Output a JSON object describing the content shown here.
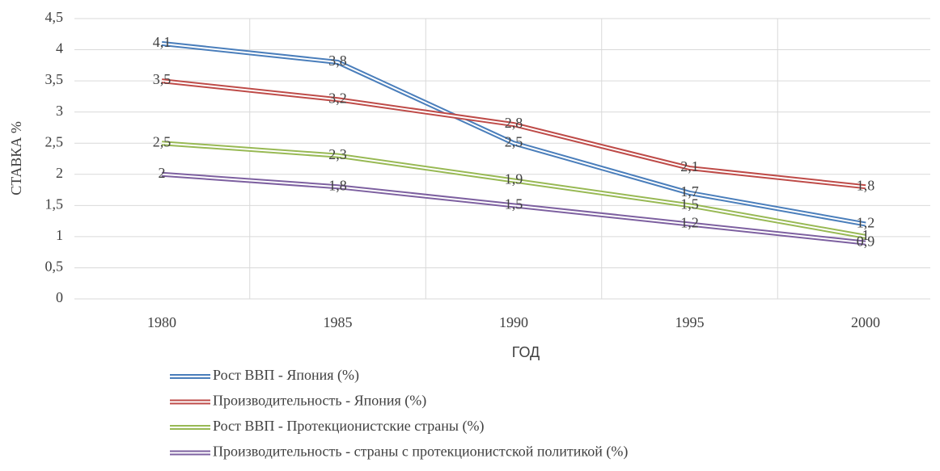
{
  "chart_data": {
    "type": "line",
    "y_axis_label": "СТАВКА %",
    "x_axis_label": "ГОД",
    "categories": [
      "1980",
      "1985",
      "1990",
      "1995",
      "2000"
    ],
    "series": [
      {
        "name": "Рост ВВП - Япония (%)",
        "color": "#4a7ebb",
        "values": [
          4.1,
          3.8,
          2.5,
          1.7,
          1.2
        ],
        "value_labels": [
          "4,1",
          "3,8",
          "2,5",
          "1,7",
          "1,2"
        ]
      },
      {
        "name": "Производительность - Япония (%)",
        "color": "#be4b48",
        "values": [
          3.5,
          3.2,
          2.8,
          2.1,
          1.8
        ],
        "value_labels": [
          "3,5",
          "3,2",
          "2,8",
          "2,1",
          "1,8"
        ]
      },
      {
        "name": "Рост ВВП - Протекционистские страны (%)",
        "color": "#98b954",
        "values": [
          2.5,
          2.3,
          1.9,
          1.5,
          1
        ],
        "value_labels": [
          "2,5",
          "2,3",
          "1,9",
          "1,5",
          "1"
        ]
      },
      {
        "name": "Производительность - страны с протекционистской политикой (%)",
        "color": "#7d60a0",
        "values": [
          2,
          1.8,
          1.5,
          1.2,
          0.9
        ],
        "value_labels": [
          "2",
          "1,8",
          "1,5",
          "1,2",
          "0,9"
        ]
      }
    ],
    "ylim": [
      0,
      4.5
    ],
    "yticks": [
      0,
      {
        "value": 0.5,
        "label": "0,5"
      },
      1,
      {
        "value": 1.5,
        "label": "1,5"
      },
      2,
      {
        "value": 2.5,
        "label": "2,5"
      },
      3,
      {
        "value": 3.5,
        "label": "3,5"
      },
      4,
      {
        "value": 4.5,
        "label": "4,5"
      }
    ],
    "grid": true,
    "legend": "bottom"
  }
}
